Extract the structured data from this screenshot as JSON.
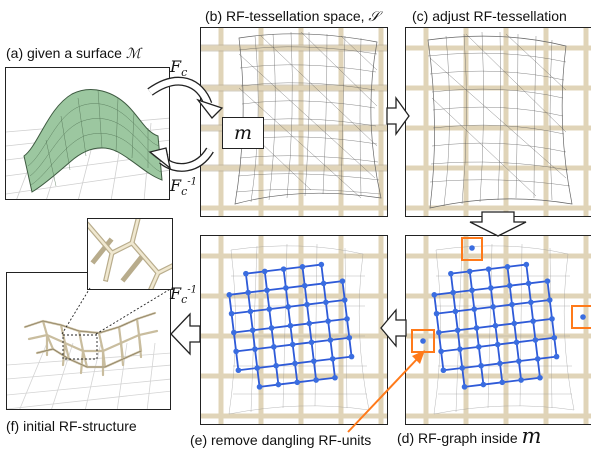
{
  "captions": {
    "a": "(a) given a surface",
    "a_symbol": "ℳ",
    "b": "(b) RF-tessellation space,",
    "b_symbol": "𝒮",
    "c": "(c) adjust RF-tessellation",
    "d": "(d) RF-graph inside",
    "d_symbol": "m",
    "e": "(e) remove dangling RF-units",
    "f": "(f) initial RF-structure"
  },
  "labels": {
    "fc": "F",
    "fc_sub": "c",
    "fc_inv": "F",
    "fc_inv_sub": "c",
    "fc_inv_sup": "-1",
    "m_box": "m"
  },
  "colors": {
    "surface": "#9cc7a0",
    "graph_node": "#3a6de0",
    "graph_edge": "#2e5ad8",
    "highlight": "#ff7a1a",
    "lattice": "#e0d4b8"
  }
}
